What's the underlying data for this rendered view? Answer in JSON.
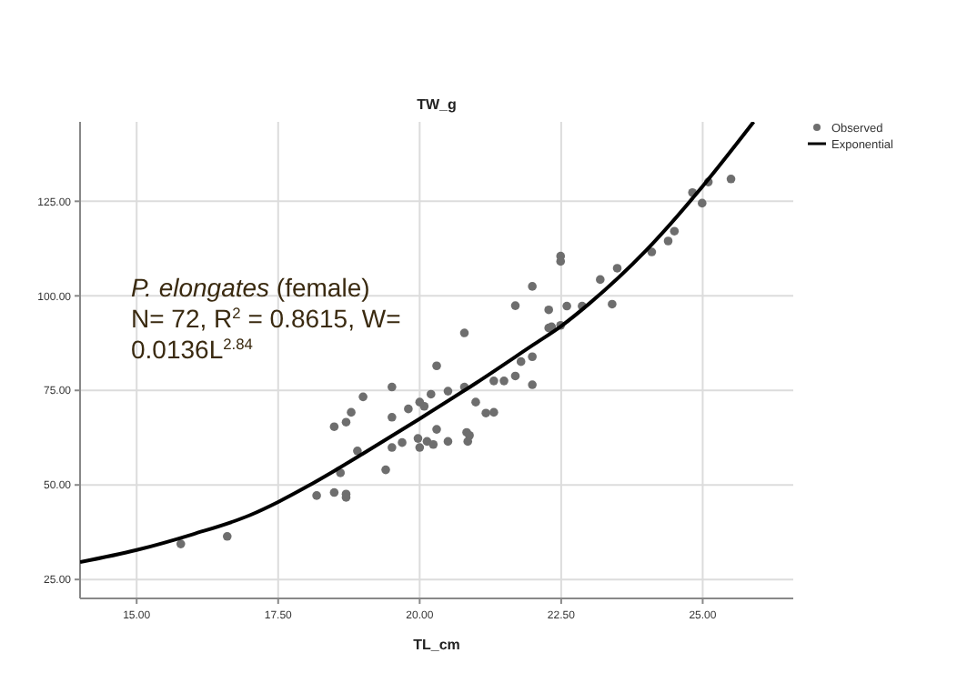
{
  "chart_data": {
    "type": "scatter",
    "ylabel": "TW_g",
    "xlabel": "TL_cm",
    "annotations": [
      "P. elongates (female)",
      "N= 72, R$^{2}$ = 0.8615, W=",
      "0.0136L$^{2.84}$"
    ],
    "xlim": [
      14,
      26.6
    ],
    "ylim": [
      20,
      146
    ],
    "xticks": [
      {
        "value": 15,
        "label": "15.00"
      },
      {
        "value": 17.5,
        "label": "17.50"
      },
      {
        "value": 20,
        "label": "20.00"
      },
      {
        "value": 22.5,
        "label": "22.50"
      },
      {
        "value": 25,
        "label": "25.00"
      }
    ],
    "yticks": [
      {
        "value": 25,
        "label": "25.00"
      },
      {
        "value": 50,
        "label": "50.00"
      },
      {
        "value": 75,
        "label": "75.00"
      },
      {
        "value": 100,
        "label": "100.00"
      },
      {
        "value": 125,
        "label": "125.00"
      }
    ],
    "grid": true,
    "legend": "top right",
    "series": [
      {
        "name": "Observed",
        "color": "#6e6e6e",
        "marker": "circle",
        "x": [
          15.78,
          16.6,
          18.18,
          18.49,
          18.7,
          18.7,
          18.6,
          18.49,
          18.7,
          18.79,
          19.0,
          18.9,
          19.4,
          19.51,
          19.51,
          19.51,
          19.69,
          19.8,
          20.0,
          20.08,
          19.97,
          20.0,
          20.2,
          20.13,
          20.3,
          20.3,
          20.24,
          20.5,
          20.5,
          20.79,
          20.79,
          20.83,
          20.85,
          20.88,
          20.99,
          21.17,
          21.31,
          21.31,
          21.49,
          21.69,
          21.69,
          21.79,
          21.99,
          21.99,
          21.99,
          22.28,
          22.28,
          22.33,
          22.49,
          22.49,
          22.49,
          22.6,
          22.87,
          23.19,
          23.4,
          23.49,
          24.1,
          24.39,
          24.5,
          24.82,
          24.99,
          25.1,
          25.5
        ],
        "values": [
          34.4,
          36.4,
          47.2,
          48.0,
          47.6,
          46.7,
          53.2,
          65.4,
          66.6,
          69.2,
          73.3,
          59.0,
          54.0,
          75.9,
          67.9,
          59.9,
          61.2,
          70.1,
          71.9,
          70.8,
          62.3,
          59.9,
          74.0,
          61.5,
          64.7,
          81.5,
          60.7,
          74.8,
          61.5,
          90.2,
          75.9,
          63.9,
          61.5,
          63.1,
          71.9,
          69.0,
          69.2,
          77.5,
          77.5,
          78.8,
          97.4,
          82.6,
          83.9,
          76.5,
          102.5,
          96.3,
          91.5,
          91.8,
          110.5,
          109.1,
          92.2,
          97.3,
          97.3,
          104.3,
          97.8,
          107.3,
          111.6,
          114.5,
          117.1,
          127.3,
          124.5,
          130.1,
          130.9
        ]
      },
      {
        "name": "Exponential",
        "type": "line",
        "color": "#000000",
        "line_style": "solid",
        "x": [
          14,
          15,
          16,
          17,
          17.5,
          18,
          18.5,
          19,
          20,
          21,
          22,
          22.5,
          23,
          24,
          25,
          25.9
        ],
        "values": [
          29.6,
          32.8,
          37,
          42,
          45.5,
          49.5,
          53.8,
          58.3,
          67.5,
          77,
          87,
          92,
          98,
          112,
          129,
          146
        ]
      }
    ]
  }
}
